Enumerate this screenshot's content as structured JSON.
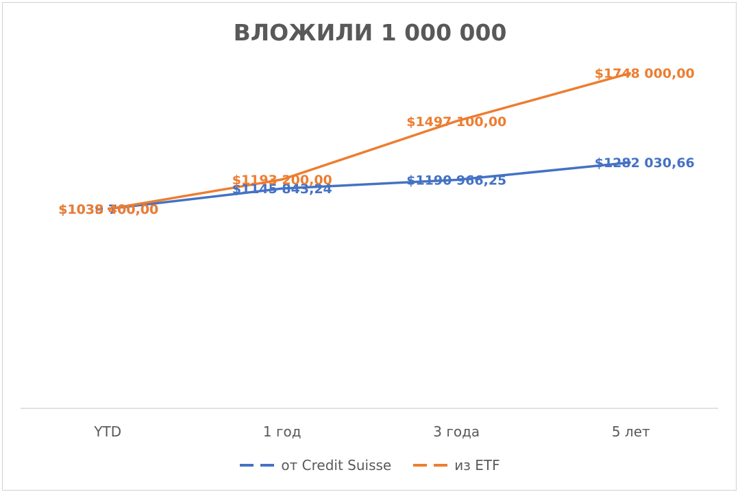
{
  "chart_data": {
    "type": "line",
    "title": "ВЛОЖИЛИ 1 000 000",
    "categories": [
      "YTD",
      "1 год",
      "3 года",
      "5 лет"
    ],
    "ylim": [
      0,
      2000000
    ],
    "grid": false,
    "legend": "bottom",
    "series": [
      {
        "name": "от Credit Suisse",
        "color": "#4472C4",
        "values": [
          1039700,
          1145843.24,
          1190966.25,
          1282030.66
        ],
        "labels": [
          "$1039 700,00",
          "$1145 843,24",
          "$1190 966,25",
          "$1282 030,66"
        ]
      },
      {
        "name": "из ETF",
        "color": "#ED7D31",
        "values": [
          1038400,
          1193200,
          1497100,
          1748000
        ],
        "labels": [
          "$1038 400,00",
          "$1193 200,00",
          "$1497 100,00",
          "$1748 000,00"
        ]
      }
    ]
  }
}
